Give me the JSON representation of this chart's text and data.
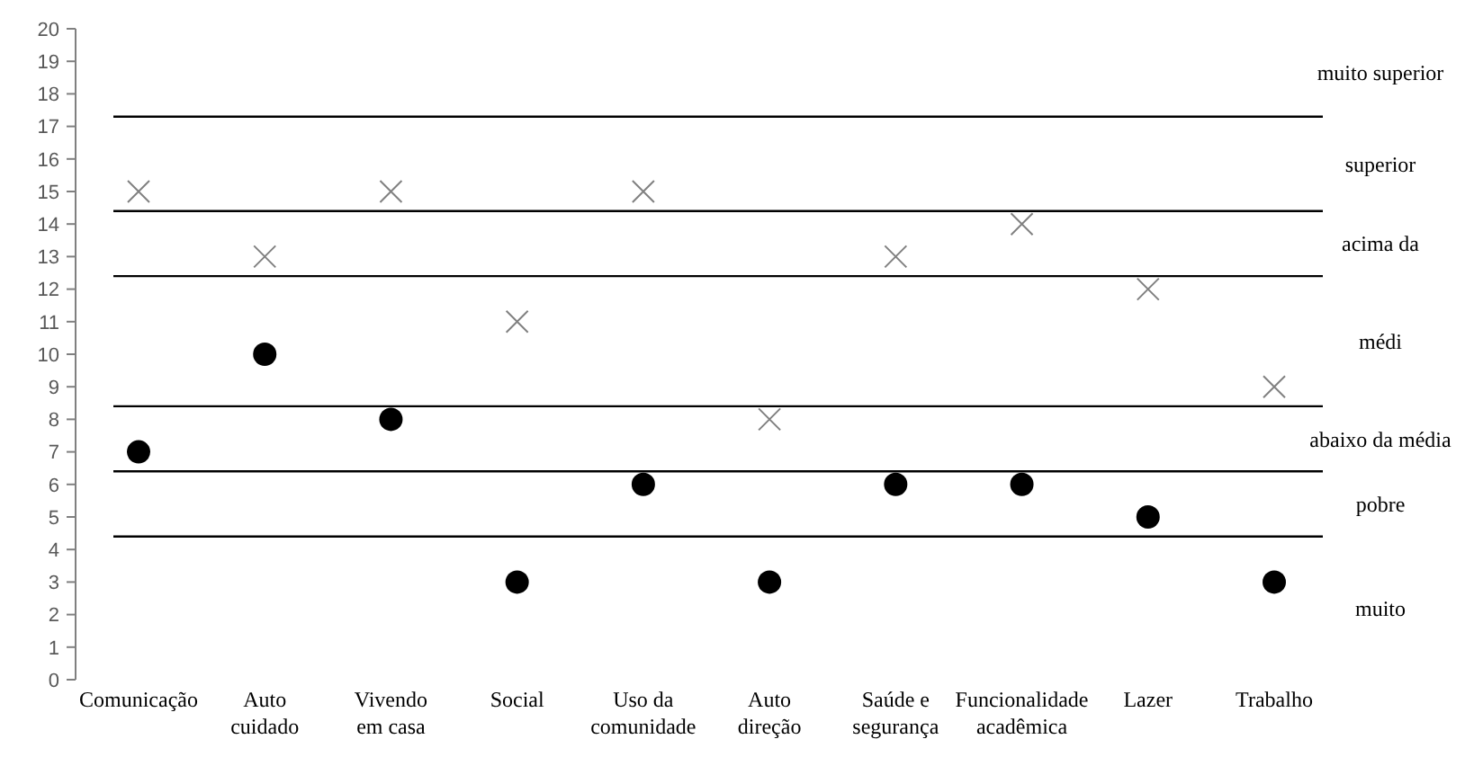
{
  "chart_data": {
    "type": "scatter",
    "categories": [
      "Comunicação",
      "Auto\ncuidado",
      "Vivendo\nem casa",
      "Social",
      "Uso da\ncomunidade",
      "Auto\ndireção",
      "Saúde e\nsegurança",
      "Funcionalidade\nacadêmica",
      "Lazer",
      "Trabalho"
    ],
    "series": [
      {
        "color": "#808080",
        "marker": "cross",
        "values": [
          15,
          13,
          15,
          11,
          15,
          8,
          13,
          14,
          12,
          9
        ]
      },
      {
        "color": "#000000",
        "marker": "circle",
        "values": [
          7,
          10,
          8,
          3,
          6,
          3,
          6,
          6,
          5,
          3
        ]
      }
    ],
    "ylim": [
      0,
      20
    ],
    "yticks": [
      0,
      1,
      2,
      3,
      4,
      5,
      6,
      7,
      8,
      9,
      10,
      11,
      12,
      13,
      14,
      15,
      16,
      17,
      18,
      19,
      20
    ],
    "grid": false,
    "ref_lines": [
      {
        "axis": "y",
        "value": 17.3,
        "color": "#000000"
      },
      {
        "axis": "y",
        "value": 14.4,
        "color": "#000000"
      },
      {
        "axis": "y",
        "value": 12.4,
        "color": "#000000"
      },
      {
        "axis": "y",
        "value": 8.4,
        "color": "#000000"
      },
      {
        "axis": "y",
        "value": 6.4,
        "color": "#000000"
      },
      {
        "axis": "y",
        "value": 4.4,
        "color": "#000000"
      }
    ],
    "annotations": [
      "muito superior",
      "superior",
      "acima da",
      "médi",
      "abaixo da média",
      "pobre",
      "muito"
    ]
  }
}
